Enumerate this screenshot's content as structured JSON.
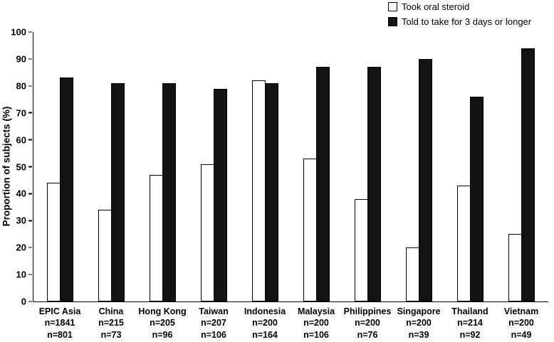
{
  "chart_data": {
    "type": "bar",
    "title": "",
    "xlabel": "",
    "ylabel": "Proportion of subjects (%)",
    "ylim": [
      0,
      100
    ],
    "ytick_step": 10,
    "grid": false,
    "legend_position": "top-right",
    "categories": [
      {
        "label": "EPIC Asia",
        "n_lines": [
          "n=1841",
          "n=801"
        ]
      },
      {
        "label": "China",
        "n_lines": [
          "n=215",
          "n=73"
        ]
      },
      {
        "label": "Hong Kong",
        "n_lines": [
          "n=205",
          "n=96"
        ]
      },
      {
        "label": "Taiwan",
        "n_lines": [
          "n=207",
          "n=106"
        ]
      },
      {
        "label": "Indonesia",
        "n_lines": [
          "n=200",
          "n=164"
        ]
      },
      {
        "label": "Malaysia",
        "n_lines": [
          "n=200",
          "n=106"
        ]
      },
      {
        "label": "Philippines",
        "n_lines": [
          "n=200",
          "n=76"
        ]
      },
      {
        "label": "Singapore",
        "n_lines": [
          "n=200",
          "n=39"
        ]
      },
      {
        "label": "Thailand",
        "n_lines": [
          "n=214",
          "n=92"
        ]
      },
      {
        "label": "Vietnam",
        "n_lines": [
          "n=200",
          "n=49"
        ]
      }
    ],
    "series": [
      {
        "name": "Took oral steroid",
        "fill": "#ffffff",
        "stroke": "#000000",
        "values": [
          44,
          34,
          47,
          51,
          82,
          53,
          38,
          20,
          43,
          25
        ]
      },
      {
        "name": "Told to take for 3 days or longer",
        "fill": "#131313",
        "stroke": "#000000",
        "values": [
          83,
          81,
          81,
          79,
          81,
          87,
          87,
          90,
          76,
          94
        ]
      }
    ]
  }
}
